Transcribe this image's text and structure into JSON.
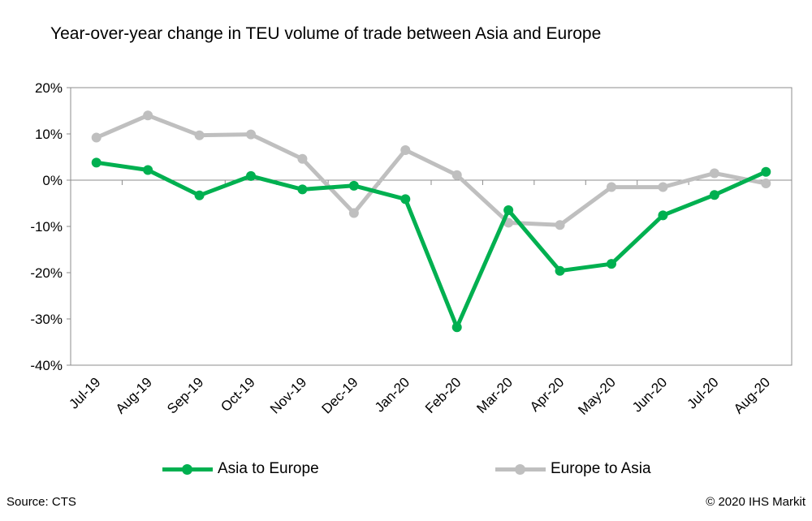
{
  "chart_data": {
    "type": "line",
    "title": "Year-over-year change in TEU volume of trade between Asia and Europe",
    "categories": [
      "Jul-19",
      "Aug-19",
      "Sep-19",
      "Oct-19",
      "Nov-19",
      "Dec-19",
      "Jan-20",
      "Feb-20",
      "Mar-20",
      "Apr-20",
      "May-20",
      "Jun-20",
      "Jul-20",
      "Aug-20"
    ],
    "ylim": [
      -40,
      20
    ],
    "yticks": [
      20,
      10,
      0,
      -10,
      -20,
      -30,
      -40
    ],
    "ytick_labels": [
      "20%",
      "10%",
      "0%",
      "-10%",
      "-20%",
      "-30%",
      "-40%"
    ],
    "grid": false,
    "legend_position": "bottom",
    "series": [
      {
        "name": "Asia to Europe",
        "color": "#00b050",
        "values": [
          3.8,
          2.2,
          -3.3,
          0.9,
          -2.0,
          -1.2,
          -4.1,
          -31.8,
          -6.5,
          -19.6,
          -18.1,
          -7.6,
          -3.2,
          1.8
        ]
      },
      {
        "name": "Europe to Asia",
        "color": "#bfbfbf",
        "values": [
          9.2,
          14.0,
          9.7,
          9.9,
          4.6,
          -7.1,
          6.5,
          1.1,
          -9.2,
          -9.7,
          -1.5,
          -1.5,
          1.5,
          -0.7
        ]
      }
    ]
  },
  "footer": {
    "source": "Source: CTS",
    "copyright": "© 2020 IHS Markit"
  }
}
